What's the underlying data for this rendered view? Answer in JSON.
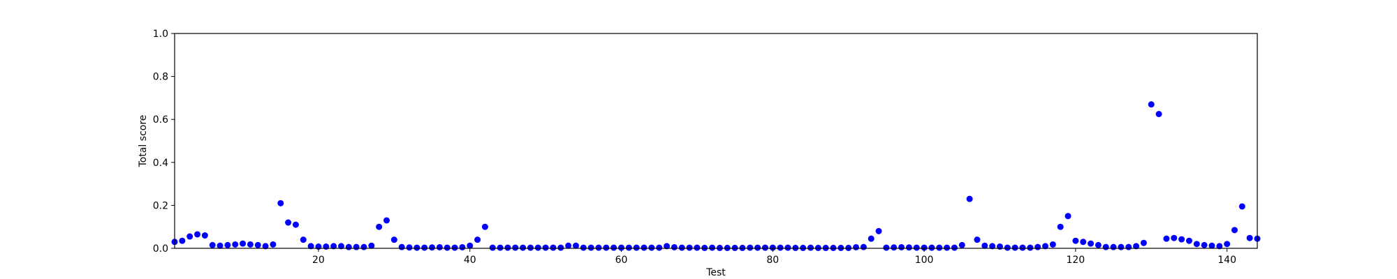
{
  "chart_data": {
    "type": "scatter",
    "title": "",
    "xlabel": "Test",
    "ylabel": "Total score",
    "xlim": [
      1,
      144
    ],
    "ylim": [
      0,
      1.0
    ],
    "xticks": [
      20,
      40,
      60,
      80,
      100,
      120,
      140
    ],
    "yticks": [
      0.0,
      0.2,
      0.4,
      0.6,
      0.8,
      1.0
    ],
    "xtick_labels": [
      "20",
      "40",
      "60",
      "80",
      "100",
      "120",
      "140"
    ],
    "ytick_labels": [
      "0.0",
      "0.2",
      "0.4",
      "0.6",
      "0.8",
      "1.0"
    ],
    "grid": false,
    "marker_color": "#0000ff",
    "series": [
      {
        "x": [
          1,
          2,
          3,
          4,
          5,
          6,
          7,
          8,
          9,
          10,
          11,
          12,
          13,
          14,
          15,
          16,
          17,
          18,
          19,
          20,
          21,
          22,
          23,
          24,
          25,
          26,
          27,
          28,
          29,
          30,
          31,
          32,
          33,
          34,
          35,
          36,
          37,
          38,
          39,
          40,
          41,
          42,
          43,
          44,
          45,
          46,
          47,
          48,
          49,
          50,
          51,
          52,
          53,
          54,
          55,
          56,
          57,
          58,
          59,
          60,
          61,
          62,
          63,
          64,
          65,
          66,
          67,
          68,
          69,
          70,
          71,
          72,
          73,
          74,
          75,
          76,
          77,
          78,
          79,
          80,
          81,
          82,
          83,
          84,
          85,
          86,
          87,
          88,
          89,
          90,
          91,
          92,
          93,
          94,
          95,
          96,
          97,
          98,
          99,
          100,
          101,
          102,
          103,
          104,
          105,
          106,
          107,
          108,
          109,
          110,
          111,
          112,
          113,
          114,
          115,
          116,
          117,
          118,
          119,
          120,
          121,
          122,
          123,
          124,
          125,
          126,
          127,
          128,
          129,
          130,
          131,
          132,
          133,
          134,
          135,
          136,
          137,
          138,
          139,
          140,
          141,
          142,
          143,
          144
        ],
        "y": [
          0.03,
          0.035,
          0.055,
          0.065,
          0.06,
          0.015,
          0.012,
          0.015,
          0.018,
          0.022,
          0.018,
          0.015,
          0.01,
          0.018,
          0.21,
          0.12,
          0.11,
          0.04,
          0.01,
          0.008,
          0.008,
          0.01,
          0.01,
          0.006,
          0.006,
          0.006,
          0.012,
          0.1,
          0.13,
          0.04,
          0.006,
          0.004,
          0.003,
          0.003,
          0.004,
          0.005,
          0.003,
          0.003,
          0.005,
          0.012,
          0.04,
          0.1,
          0.003,
          0.003,
          0.003,
          0.003,
          0.003,
          0.003,
          0.003,
          0.003,
          0.003,
          0.003,
          0.012,
          0.012,
          0.003,
          0.003,
          0.003,
          0.003,
          0.003,
          0.003,
          0.003,
          0.003,
          0.003,
          0.003,
          0.003,
          0.01,
          0.005,
          0.003,
          0.003,
          0.003,
          0.002,
          0.003,
          0.002,
          0.002,
          0.002,
          0.002,
          0.003,
          0.003,
          0.003,
          0.003,
          0.003,
          0.003,
          0.002,
          0.002,
          0.003,
          0.002,
          0.002,
          0.002,
          0.002,
          0.002,
          0.005,
          0.006,
          0.045,
          0.08,
          0.003,
          0.004,
          0.005,
          0.004,
          0.003,
          0.003,
          0.003,
          0.003,
          0.003,
          0.003,
          0.015,
          0.23,
          0.04,
          0.012,
          0.01,
          0.008,
          0.003,
          0.003,
          0.003,
          0.003,
          0.006,
          0.01,
          0.018,
          0.1,
          0.15,
          0.035,
          0.03,
          0.022,
          0.015,
          0.006,
          0.006,
          0.006,
          0.006,
          0.01,
          0.025,
          0.67,
          0.625,
          0.045,
          0.048,
          0.042,
          0.035,
          0.02,
          0.015,
          0.012,
          0.01,
          0.02,
          0.085,
          0.195,
          0.048,
          0.045
        ]
      }
    ]
  }
}
